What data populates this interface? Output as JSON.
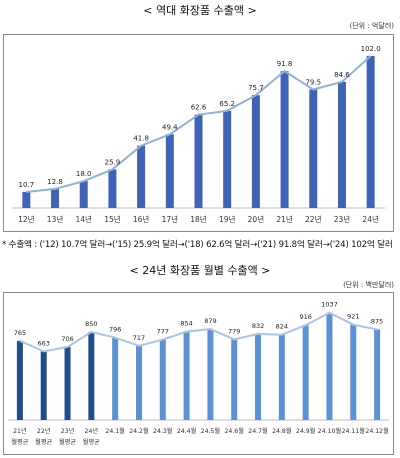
{
  "charts": [
    {
      "title": "< 역대 화장품 수출액 >",
      "unit": "(단위 : 억달러)"
    },
    {
      "title": "< 24년 화장품 월별 수출액 >",
      "unit": "(단위 : 백만달러)"
    }
  ],
  "note": "* 수출액 : ('12) 10.7억 달러→('15) 25.9억 달러→('18) 62.6억 달러→('21) 91.8억 달러→('24) 102억 달러",
  "colors": {
    "bar_dark": "#3f63b5",
    "bar_light": "#5b92d4",
    "bar_navy": "#1f4e8a",
    "line": "#8fb0dc",
    "line2": "#a9c4e4",
    "frame": "#8a8a8a"
  },
  "chart_data": [
    {
      "type": "bar",
      "title": "< 역대 화장품 수출액 >",
      "ylabel": "(단위 : 억달러)",
      "categories": [
        "12년",
        "13년",
        "14년",
        "15년",
        "16년",
        "17년",
        "18년",
        "19년",
        "20년",
        "21년",
        "22년",
        "23년",
        "24년"
      ],
      "values": [
        10.7,
        12.8,
        18.0,
        25.9,
        41.8,
        49.4,
        62.6,
        65.2,
        75.7,
        91.8,
        79.5,
        84.6,
        102.0
      ],
      "value_labels": [
        "10.7",
        "12.8",
        "18.0",
        "25.9",
        "41.8",
        "49.4",
        "62.6",
        "65.2",
        "75.7",
        "91.8",
        "79.5",
        "84.6",
        "102.0"
      ],
      "overlay": "line",
      "ylim": [
        0,
        108
      ],
      "grid": false
    },
    {
      "type": "bar",
      "title": "< 24년 화장품 월별 수출액 >",
      "ylabel": "(단위 : 백만달러)",
      "categories": [
        "21년",
        "22년",
        "23년",
        "24년",
        "24.1월",
        "24.2월",
        "24.3월",
        "24.4월",
        "24.5월",
        "24.6월",
        "24.7월",
        "24.8월",
        "24.9월",
        "24.10월",
        "24.11월",
        "24.12월"
      ],
      "sublabels": [
        "월평균",
        "월평균",
        "월평균",
        "월평균",
        "",
        "",
        "",
        "",
        "",
        "",
        "",
        "",
        "",
        "",
        "",
        ""
      ],
      "values": [
        765,
        663,
        706,
        850,
        796,
        717,
        777,
        854,
        879,
        779,
        832,
        824,
        916,
        1037,
        921,
        875
      ],
      "overlay": "line",
      "ylim": [
        0,
        1150
      ],
      "grid": false
    }
  ]
}
